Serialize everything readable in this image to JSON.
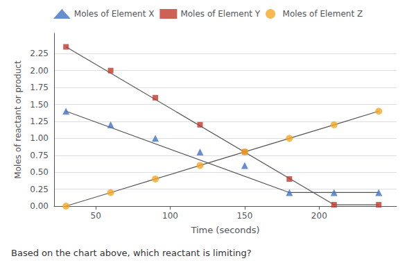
{
  "chart_data": {
    "type": "scatter",
    "xlabel": "Time (seconds)",
    "ylabel": "Moles of reactant or product",
    "annotations": [
      "Based on the chart above, which reactant is limiting?"
    ],
    "xlim": [
      22,
      252
    ],
    "xticks": [
      50,
      100,
      150,
      200
    ],
    "ylim": [
      0.0,
      2.55
    ],
    "yticks": [
      {
        "value": 0.0,
        "label": "0.00"
      },
      {
        "value": 0.25,
        "label": "0.25"
      },
      {
        "value": 0.5,
        "label": "0.50"
      },
      {
        "value": 0.75,
        "label": "0.75"
      },
      {
        "value": 1.0,
        "label": "1.00"
      },
      {
        "value": 1.25,
        "label": "1.25"
      },
      {
        "value": 1.5,
        "label": "1.50"
      },
      {
        "value": 1.75,
        "label": "1.75"
      },
      {
        "value": 2.0,
        "label": "2.00"
      },
      {
        "value": 2.25,
        "label": "2.25"
      }
    ],
    "grid": true,
    "legend": "top",
    "series": [
      {
        "type": "line",
        "color": "#555555",
        "x": [
          30,
          180,
          240
        ],
        "values": [
          1.4,
          0.2,
          0.2
        ]
      },
      {
        "type": "line",
        "color": "#555555",
        "x": [
          30,
          210,
          240
        ],
        "values": [
          2.35,
          0.02,
          0.02
        ]
      },
      {
        "type": "line",
        "color": "#555555",
        "x": [
          30,
          60,
          90,
          120,
          150,
          180,
          210,
          240
        ],
        "values": [
          0.0,
          0.2,
          0.4,
          0.6,
          0.8,
          1.0,
          1.2,
          1.4
        ]
      },
      {
        "name": "Moles of Element X",
        "type": "scatter",
        "color": "#4472C4",
        "marker": "triangle",
        "x": [
          30,
          60,
          90,
          120,
          150,
          180,
          210,
          240
        ],
        "values": [
          1.4,
          1.2,
          1.0,
          0.8,
          0.6,
          0.2,
          0.2,
          0.2
        ]
      },
      {
        "name": "Moles of Element Y",
        "type": "scatter",
        "color": "#C0392B",
        "marker": "square",
        "x": [
          30,
          60,
          90,
          120,
          150,
          180,
          210,
          240
        ],
        "values": [
          2.35,
          2.0,
          1.6,
          1.2,
          0.8,
          0.4,
          0.02,
          0.02
        ]
      },
      {
        "name": "Moles of Element Z",
        "type": "scatter",
        "color": "#F5A623",
        "marker": "circle",
        "x": [
          30,
          60,
          90,
          120,
          150,
          180,
          210,
          240
        ],
        "values": [
          0.0,
          0.2,
          0.4,
          0.6,
          0.8,
          1.0,
          1.2,
          1.4
        ]
      }
    ]
  }
}
